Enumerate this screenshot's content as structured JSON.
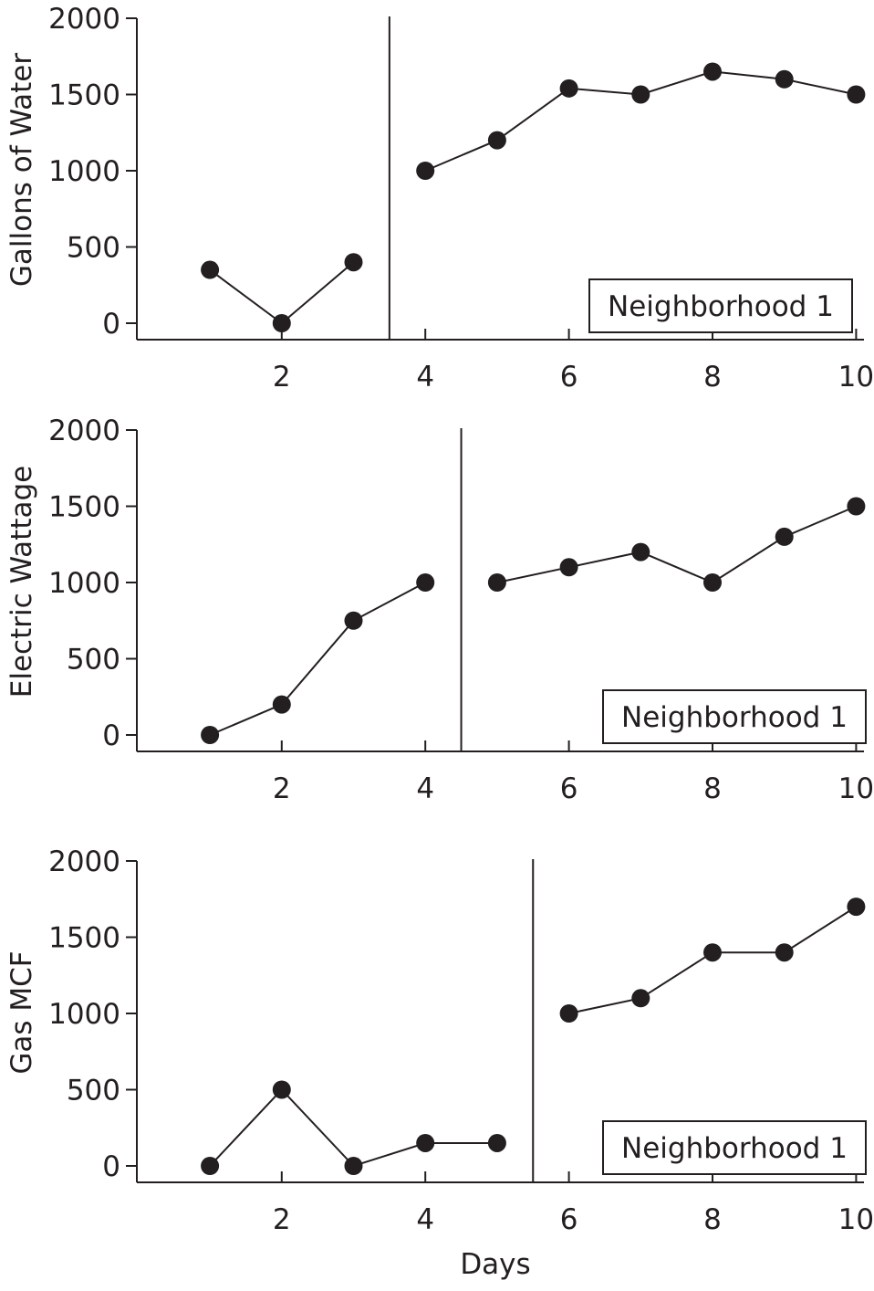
{
  "chart_data": [
    {
      "type": "line",
      "ylabel": "Gallons of Water",
      "xlabel": "",
      "legend_box": "Neighborhood 1",
      "xlim": [
        0,
        10
      ],
      "ylim": [
        0,
        2000
      ],
      "xticks": [
        "2",
        "4",
        "6",
        "8",
        "10"
      ],
      "yticks": [
        "0",
        "500",
        "1000",
        "1500",
        "2000"
      ],
      "phase_change_x": 3.5,
      "series": [
        {
          "x": [
            1,
            2,
            3
          ],
          "y": [
            350,
            0,
            400
          ]
        },
        {
          "x": [
            4,
            5,
            6,
            7,
            8,
            9,
            10
          ],
          "y": [
            1000,
            1200,
            1540,
            1500,
            1650,
            1600,
            1500
          ]
        }
      ],
      "grid": false
    },
    {
      "type": "line",
      "ylabel": "Electric Wattage",
      "xlabel": "",
      "legend_box": "Neighborhood 1",
      "xlim": [
        0,
        10
      ],
      "ylim": [
        0,
        2000
      ],
      "xticks": [
        "2",
        "4",
        "6",
        "8",
        "10"
      ],
      "yticks": [
        "0",
        "500",
        "1000",
        "1500",
        "2000"
      ],
      "phase_change_x": 4.5,
      "series": [
        {
          "x": [
            1,
            2,
            3,
            4
          ],
          "y": [
            0,
            200,
            750,
            1000
          ]
        },
        {
          "x": [
            5,
            6,
            7,
            8,
            9,
            10
          ],
          "y": [
            1000,
            1100,
            1200,
            1000,
            1300,
            1500
          ]
        }
      ],
      "grid": false
    },
    {
      "type": "line",
      "ylabel": "Gas MCF",
      "xlabel": "Days",
      "legend_box": "Neighborhood 1",
      "xlim": [
        0,
        10
      ],
      "ylim": [
        0,
        2000
      ],
      "xticks": [
        "2",
        "4",
        "6",
        "8",
        "10"
      ],
      "yticks": [
        "0",
        "500",
        "1000",
        "1500",
        "2000"
      ],
      "phase_change_x": 5.5,
      "series": [
        {
          "x": [
            1,
            2,
            3,
            4,
            5
          ],
          "y": [
            0,
            500,
            0,
            150,
            150
          ]
        },
        {
          "x": [
            6,
            7,
            8,
            9,
            10
          ],
          "y": [
            1000,
            1100,
            1400,
            1400,
            1700
          ]
        }
      ],
      "grid": false
    }
  ]
}
